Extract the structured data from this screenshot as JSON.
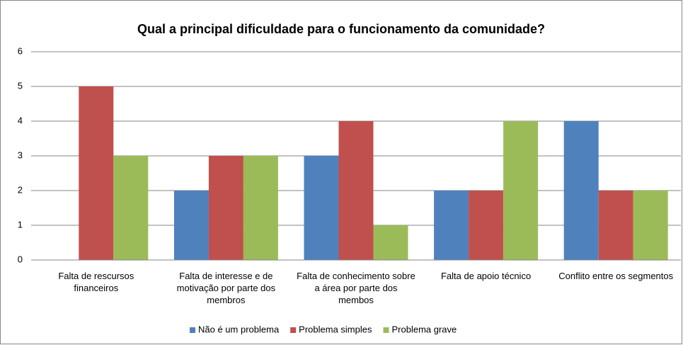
{
  "chart_data": {
    "type": "bar",
    "title": "Qual a principal dificuldade para o funcionamento da comunidade?",
    "categories": [
      "Falta de rescursos financeiros",
      "Falta de interesse e de motivação por parte dos membros",
      "Falta de conhecimento sobre a área por parte dos membos",
      "Falta de apoio técnico",
      "Conflito entre os segmentos"
    ],
    "series": [
      {
        "name": "Não é um problema",
        "color": "#4f81bd",
        "values": [
          0,
          2,
          3,
          2,
          4
        ]
      },
      {
        "name": "Problema simples",
        "color": "#c0504d",
        "values": [
          5,
          3,
          4,
          2,
          2
        ]
      },
      {
        "name": "Problema grave",
        "color": "#9bbb59",
        "values": [
          3,
          3,
          1,
          4,
          2
        ]
      }
    ],
    "ylim": [
      0,
      6
    ],
    "yticks": [
      0,
      1,
      2,
      3,
      4,
      5,
      6
    ],
    "grid": true,
    "legend": "bottom"
  }
}
